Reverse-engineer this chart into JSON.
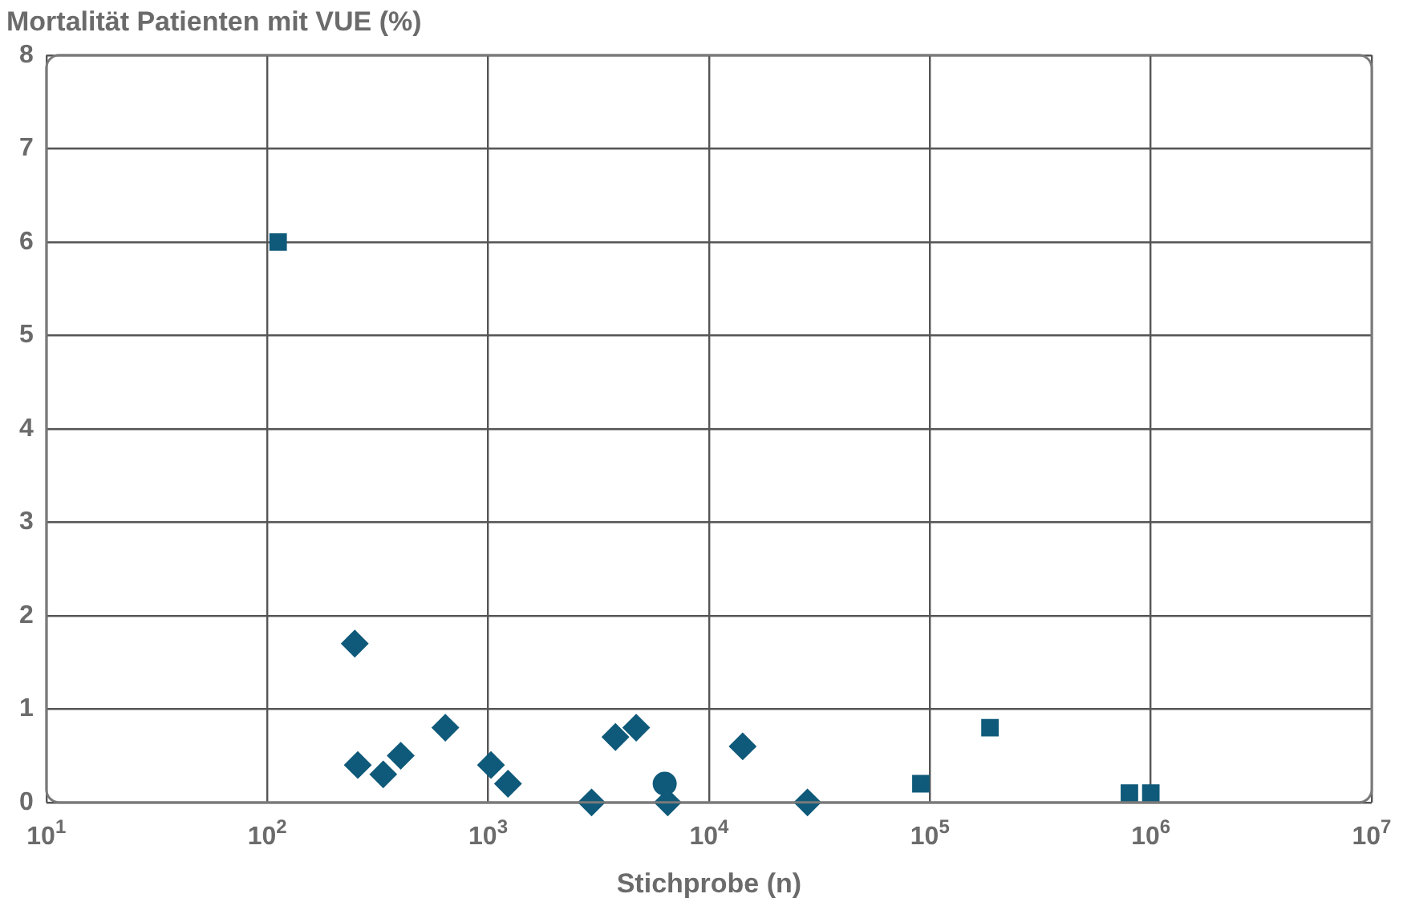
{
  "chart_data": {
    "type": "scatter",
    "ylabel": "Mortalität Patienten mit VUE (%)",
    "xlabel": "Stichprobe (n)",
    "log": "x",
    "xlim": [
      10,
      10000000
    ],
    "xticks": [
      {
        "value": 10,
        "label": "10$^{1}$"
      },
      {
        "value": 100,
        "label": "10$^{2}$"
      },
      {
        "value": 1000,
        "label": "10$^{3}$"
      },
      {
        "value": 10000,
        "label": "10$^{4}$"
      },
      {
        "value": 100000,
        "label": "10$^{5}$"
      },
      {
        "value": 1000000,
        "label": "10$^{6}$"
      },
      {
        "value": 10000000,
        "label": "10$^{7}$"
      }
    ],
    "ylim": [
      0,
      8
    ],
    "yticks": [
      0,
      1,
      2,
      3,
      4,
      5,
      6,
      7,
      8
    ],
    "grid": true,
    "legend": false,
    "series": [
      {
        "color": "#0f5a7a",
        "marker": "diamond",
        "x": [
          249,
          257,
          335,
          402,
          640,
          1030,
          1230,
          2940,
          3770,
          4680,
          6500,
          14200,
          27900
        ],
        "values": [
          1.7,
          0.4,
          0.3,
          0.5,
          0.8,
          0.4,
          0.2,
          0,
          0.7,
          0.8,
          0,
          0.6,
          0
        ]
      },
      {
        "color": "#0f5a7a",
        "marker": "square",
        "x": [
          112,
          91000,
          187000,
          800000,
          1000000
        ],
        "values": [
          6,
          0.2,
          0.8,
          0.1,
          0.1
        ]
      },
      {
        "color": "#0f5a7a",
        "marker": "circle",
        "x": [
          6300
        ],
        "values": [
          0.2
        ]
      }
    ]
  }
}
